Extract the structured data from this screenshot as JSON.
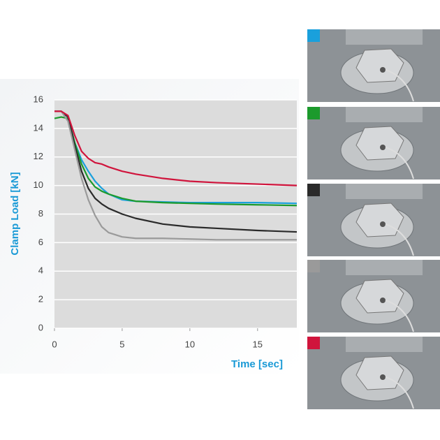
{
  "chart_data": {
    "type": "line",
    "x_label": "Time [sec]",
    "y_label": "Clamp Load [kN]",
    "x": [
      0,
      0.5,
      1,
      1.5,
      2,
      2.5,
      3,
      3.5,
      4,
      5,
      6,
      8,
      10,
      12,
      15,
      17.9
    ],
    "xlim": [
      0,
      17.9
    ],
    "ylim": [
      0,
      16
    ],
    "xticks": [
      0,
      5,
      10,
      15
    ],
    "yticks": [
      0,
      2,
      4,
      6,
      8,
      10,
      12,
      14,
      16
    ],
    "grid": true,
    "series": [
      {
        "color": "#1aa0dc",
        "values": [
          15.2,
          15.2,
          14.8,
          13.0,
          11.8,
          11.0,
          10.3,
          9.8,
          9.4,
          9.0,
          8.9,
          8.85,
          8.8,
          8.8,
          8.8,
          8.75
        ]
      },
      {
        "color": "#1c9a2c",
        "values": [
          14.7,
          14.8,
          14.7,
          13.0,
          11.5,
          10.5,
          9.9,
          9.6,
          9.4,
          9.1,
          8.9,
          8.8,
          8.75,
          8.7,
          8.65,
          8.6
        ]
      },
      {
        "color": "#2a2a2a",
        "values": [
          15.2,
          15.2,
          14.8,
          12.8,
          11.0,
          9.8,
          9.1,
          8.7,
          8.4,
          8.0,
          7.7,
          7.3,
          7.1,
          7.0,
          6.85,
          6.75
        ]
      },
      {
        "color": "#9a9a9a",
        "values": [
          15.2,
          15.2,
          14.5,
          12.5,
          10.5,
          9.0,
          7.9,
          7.1,
          6.7,
          6.4,
          6.3,
          6.3,
          6.25,
          6.2,
          6.2,
          6.2
        ]
      },
      {
        "color": "#d0143c",
        "values": [
          15.2,
          15.2,
          14.9,
          13.5,
          12.4,
          11.9,
          11.6,
          11.5,
          11.3,
          11.0,
          10.8,
          10.5,
          10.3,
          10.2,
          10.1,
          10.0
        ]
      }
    ]
  }
}
